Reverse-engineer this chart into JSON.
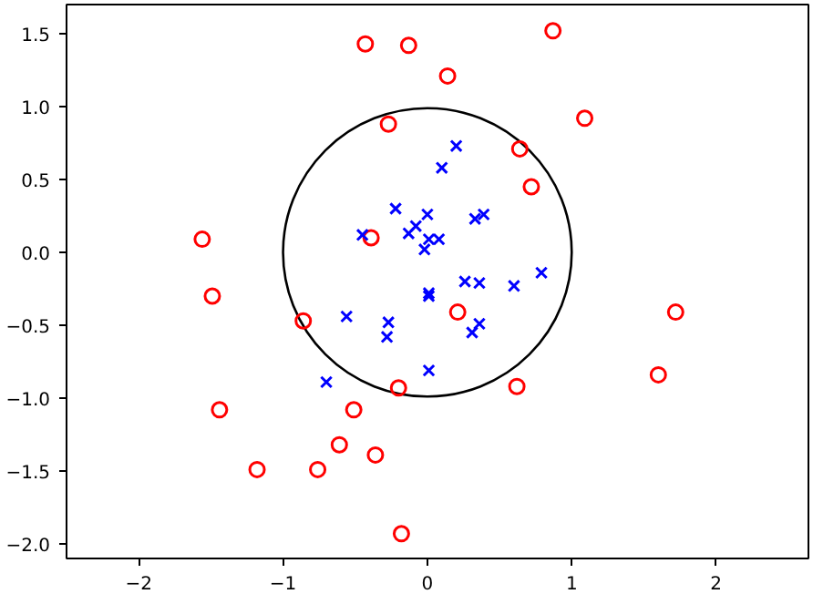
{
  "chart_data": {
    "type": "scatter",
    "xlim": [
      -2.5,
      2.64
    ],
    "ylim": [
      -2.1,
      1.7
    ],
    "xticks": [
      {
        "value": -2,
        "label": "−2"
      },
      {
        "value": -1,
        "label": "−1"
      },
      0,
      1,
      2
    ],
    "yticks": [
      {
        "value": -2,
        "label": "−2.0"
      },
      {
        "value": -1.5,
        "label": "−1.5"
      },
      {
        "value": -1,
        "label": "−1.0"
      },
      {
        "value": -0.5,
        "label": "−0.5"
      },
      {
        "value": 0,
        "label": "0.0"
      },
      {
        "value": 0.5,
        "label": "0.5"
      },
      {
        "value": 1,
        "label": "1.0"
      },
      {
        "value": 1.5,
        "label": "1.5"
      }
    ],
    "grid": false,
    "series": [
      {
        "color": "#ff0000",
        "marker": "circle",
        "x": [
          -0.43,
          -0.13,
          -0.27,
          -1.56,
          -0.39,
          -1.49,
          0.87,
          0.14,
          1.09,
          0.64,
          0.72,
          -0.86,
          -0.2,
          -1.44,
          -0.51,
          -0.61,
          -0.36,
          -1.18,
          -0.76,
          -0.18,
          0.21,
          1.72,
          1.6,
          0.62
        ],
        "values": [
          1.43,
          1.42,
          0.88,
          0.09,
          0.1,
          -0.3,
          1.52,
          1.21,
          0.92,
          0.71,
          0.45,
          -0.47,
          -0.93,
          -1.08,
          -1.08,
          -1.32,
          -1.39,
          -1.49,
          -1.49,
          -1.93,
          -0.41,
          -0.41,
          -0.84,
          -0.92
        ]
      },
      {
        "color": "#0000ff",
        "marker": "cross",
        "x": [
          0.2,
          0.1,
          0.0,
          -0.08,
          -0.13,
          0.01,
          0.08,
          -0.02,
          0.33,
          0.39,
          0.26,
          0.36,
          0.6,
          0.79,
          0.01,
          -0.22,
          -0.45,
          -0.56,
          -0.27,
          -0.28,
          -0.7,
          0.01,
          0.36,
          0.31,
          0.01
        ],
        "values": [
          0.73,
          0.58,
          0.26,
          0.18,
          0.13,
          0.09,
          0.09,
          0.02,
          0.23,
          0.26,
          -0.2,
          -0.21,
          -0.23,
          -0.14,
          -0.28,
          0.3,
          0.12,
          -0.44,
          -0.48,
          -0.58,
          -0.89,
          -0.3,
          -0.49,
          -0.55,
          -0.81
        ]
      }
    ]
  }
}
